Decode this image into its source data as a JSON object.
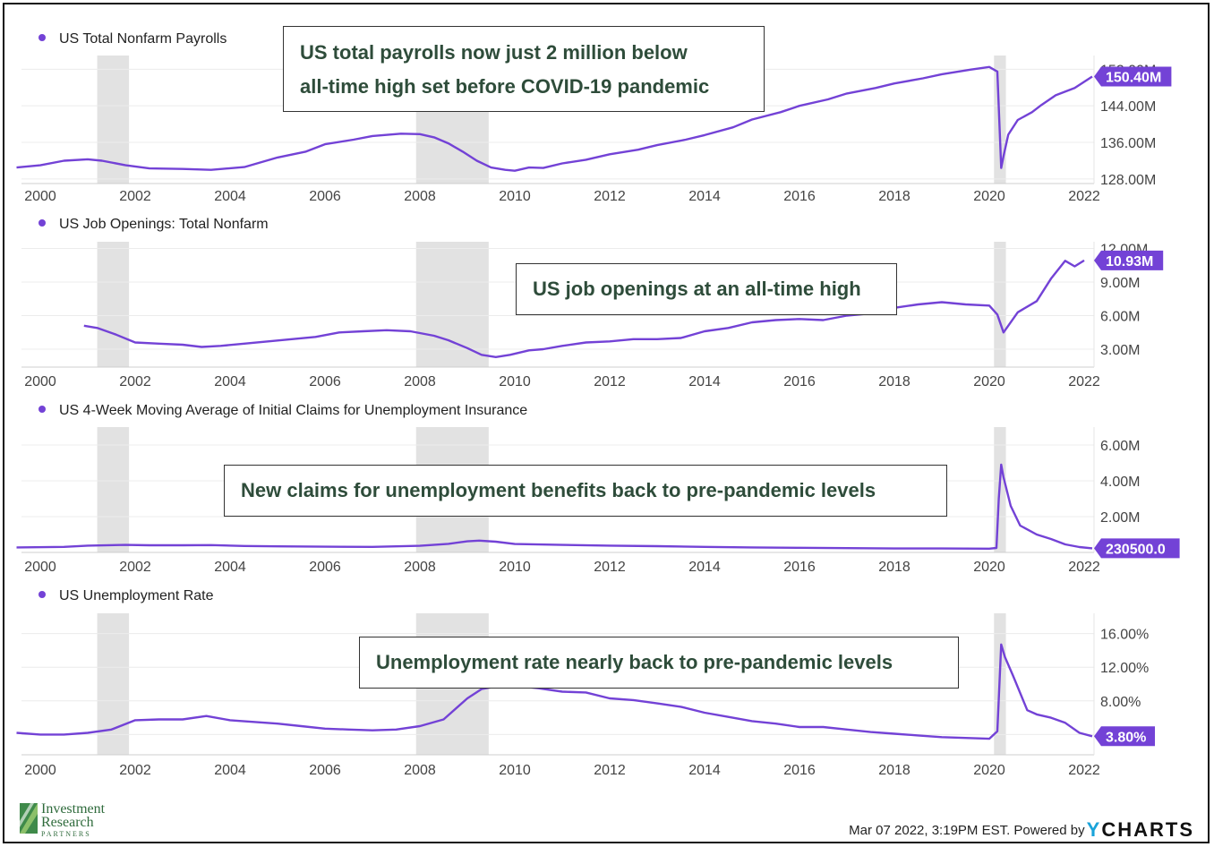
{
  "footer": {
    "timestamp_text": "Mar 07 2022, 3:19PM EST. Powered by",
    "brand_y": "Y",
    "brand_rest": "CHARTS"
  },
  "logo": {
    "line1": "Investment",
    "line2": "Research",
    "line3": "PARTNERS"
  },
  "colors": {
    "line": "#7342d6",
    "recession": "#e2e2e2",
    "text": "#2e4c3a",
    "badge": "#7342d6"
  },
  "callouts": [
    {
      "lines": [
        "US total payrolls now just 2 million below",
        "all-time high set before COVID-19 pandemic"
      ]
    },
    {
      "lines": [
        "US job openings at an all-time high"
      ]
    },
    {
      "lines": [
        "New claims for unemployment benefits back to pre-pandemic levels"
      ]
    },
    {
      "lines": [
        "Unemployment rate nearly back to pre-pandemic levels"
      ]
    }
  ],
  "chart_data": [
    {
      "type": "line",
      "title": "US Total Nonfarm Payrolls",
      "x_ticks": [
        "2000",
        "2002",
        "2004",
        "2006",
        "2008",
        "2010",
        "2012",
        "2014",
        "2016",
        "2018",
        "2020",
        "2022"
      ],
      "y_ticks": [
        "128.00M",
        "136.00M",
        "144.00M",
        "152.00M"
      ],
      "ylim": [
        127,
        155
      ],
      "last_value_label": "150.40M",
      "recessions": [
        [
          2001.2,
          2001.87
        ],
        [
          2007.92,
          2009.45
        ],
        [
          2020.1,
          2020.35
        ]
      ],
      "series": [
        {
          "x": [
            1999.5,
            2000,
            2000.5,
            2001,
            2001.3,
            2001.8,
            2002.3,
            2003,
            2003.6,
            2004.3,
            2005,
            2005.6,
            2006,
            2006.6,
            2007,
            2007.6,
            2008,
            2008.3,
            2008.6,
            2008.9,
            2009.2,
            2009.5,
            2009.8,
            2010,
            2010.3,
            2010.6,
            2011,
            2011.5,
            2012,
            2012.6,
            2013,
            2013.6,
            2014,
            2014.6,
            2015,
            2015.6,
            2016,
            2016.6,
            2017,
            2017.6,
            2018,
            2018.6,
            2019,
            2019.6,
            2020.0,
            2020.17,
            2020.25,
            2020.3,
            2020.4,
            2020.6,
            2020.9,
            2021.1,
            2021.4,
            2021.8,
            2022.17
          ],
          "y": [
            130.5,
            131.0,
            132.0,
            132.3,
            132.0,
            131.0,
            130.3,
            130.2,
            130.0,
            130.6,
            132.7,
            134.0,
            135.6,
            136.6,
            137.4,
            137.9,
            137.8,
            137.1,
            135.8,
            134.0,
            132.0,
            130.5,
            130.0,
            129.8,
            130.5,
            130.4,
            131.4,
            132.2,
            133.4,
            134.4,
            135.4,
            136.6,
            137.6,
            139.3,
            141.0,
            142.6,
            144.0,
            145.4,
            146.7,
            147.9,
            148.9,
            150.0,
            150.9,
            151.9,
            152.5,
            151.5,
            130.4,
            133.0,
            137.7,
            140.9,
            142.6,
            144.2,
            146.3,
            147.9,
            150.4
          ]
        }
      ]
    },
    {
      "type": "line",
      "title": "US Job Openings: Total Nonfarm",
      "x_ticks": [
        "2000",
        "2002",
        "2004",
        "2006",
        "2008",
        "2010",
        "2012",
        "2014",
        "2016",
        "2018",
        "2020",
        "2022"
      ],
      "y_ticks": [
        "3.00M",
        "6.00M",
        "9.00M",
        "12.00M"
      ],
      "ylim": [
        1.4,
        12.6
      ],
      "last_value_label": "10.93M",
      "recessions": [
        [
          2001.2,
          2001.87
        ],
        [
          2007.92,
          2009.45
        ],
        [
          2020.1,
          2020.35
        ]
      ],
      "series": [
        {
          "x": [
            2000.92,
            2001.2,
            2001.6,
            2002,
            2002.5,
            2003,
            2003.4,
            2003.8,
            2004.3,
            2004.8,
            2005.3,
            2005.8,
            2006.3,
            2006.8,
            2007.3,
            2007.8,
            2008.3,
            2008.6,
            2009.0,
            2009.3,
            2009.6,
            2009.9,
            2010.3,
            2010.6,
            2011,
            2011.5,
            2012,
            2012.5,
            2013,
            2013.5,
            2014,
            2014.5,
            2015,
            2015.5,
            2016,
            2016.5,
            2017,
            2017.5,
            2018,
            2018.5,
            2019,
            2019.5,
            2020.0,
            2020.17,
            2020.3,
            2020.6,
            2021,
            2021.3,
            2021.6,
            2021.8,
            2022.0
          ],
          "y": [
            5.1,
            4.9,
            4.3,
            3.6,
            3.5,
            3.4,
            3.2,
            3.3,
            3.5,
            3.7,
            3.9,
            4.1,
            4.5,
            4.6,
            4.7,
            4.6,
            4.2,
            3.8,
            3.1,
            2.5,
            2.3,
            2.5,
            2.9,
            3.0,
            3.3,
            3.6,
            3.7,
            3.9,
            3.9,
            4.0,
            4.6,
            4.9,
            5.4,
            5.6,
            5.7,
            5.6,
            6.0,
            6.2,
            6.7,
            7.0,
            7.2,
            7.0,
            6.9,
            6.1,
            4.5,
            6.3,
            7.3,
            9.3,
            10.9,
            10.4,
            10.93
          ]
        }
      ]
    },
    {
      "type": "line",
      "title": "US 4-Week Moving Average of Initial Claims for Unemployment Insurance",
      "x_ticks": [
        "2000",
        "2002",
        "2004",
        "2006",
        "2008",
        "2010",
        "2012",
        "2014",
        "2016",
        "2018",
        "2020",
        "2022"
      ],
      "y_ticks": [
        "2.00M",
        "4.00M",
        "6.00M"
      ],
      "ylim": [
        0,
        7.0
      ],
      "last_value_label": "230500.0",
      "recessions": [
        [
          2001.2,
          2001.87
        ],
        [
          2007.92,
          2009.45
        ],
        [
          2020.1,
          2020.35
        ]
      ],
      "series": [
        {
          "x": [
            1999.5,
            2000.5,
            2001,
            2001.8,
            2002.3,
            2003,
            2003.6,
            2004.3,
            2005,
            2006,
            2007,
            2008,
            2008.6,
            2009.0,
            2009.25,
            2009.6,
            2010,
            2011,
            2012,
            2013,
            2014,
            2015,
            2016,
            2017,
            2018,
            2019,
            2020.0,
            2020.15,
            2020.2,
            2020.25,
            2020.3,
            2020.45,
            2020.65,
            2021,
            2021.3,
            2021.6,
            2021.9,
            2022.17
          ],
          "y": [
            0.28,
            0.31,
            0.38,
            0.42,
            0.4,
            0.4,
            0.41,
            0.36,
            0.34,
            0.32,
            0.31,
            0.37,
            0.48,
            0.62,
            0.66,
            0.6,
            0.47,
            0.42,
            0.38,
            0.35,
            0.31,
            0.28,
            0.26,
            0.24,
            0.22,
            0.22,
            0.21,
            0.25,
            3.0,
            4.9,
            4.2,
            2.6,
            1.5,
            1.0,
            0.75,
            0.45,
            0.3,
            0.23
          ]
        }
      ]
    },
    {
      "type": "line",
      "title": "US Unemployment Rate",
      "x_ticks": [
        "2000",
        "2002",
        "2004",
        "2006",
        "2008",
        "2010",
        "2012",
        "2014",
        "2016",
        "2018",
        "2020",
        "2022"
      ],
      "y_ticks": [
        "4.00%",
        "8.00%",
        "12.00%",
        "16.00%"
      ],
      "ylim": [
        1.6,
        18.4
      ],
      "last_value_label": "3.80%",
      "recessions": [
        [
          2001.2,
          2001.87
        ],
        [
          2007.92,
          2009.45
        ],
        [
          2020.1,
          2020.35
        ]
      ],
      "series": [
        {
          "x": [
            1999.5,
            2000,
            2000.5,
            2001,
            2001.5,
            2002,
            2002.5,
            2003,
            2003.5,
            2004,
            2004.5,
            2005,
            2005.5,
            2006,
            2006.5,
            2007,
            2007.5,
            2008,
            2008.5,
            2009,
            2009.3,
            2009.8,
            2010,
            2010.5,
            2011,
            2011.5,
            2012,
            2012.5,
            2013,
            2013.5,
            2014,
            2014.5,
            2015,
            2015.5,
            2016,
            2016.5,
            2017,
            2017.5,
            2018,
            2018.5,
            2019,
            2019.5,
            2020.0,
            2020.17,
            2020.25,
            2020.33,
            2020.5,
            2020.8,
            2021,
            2021.3,
            2021.6,
            2021.9,
            2022.17
          ],
          "y": [
            4.2,
            4.0,
            4.0,
            4.2,
            4.6,
            5.7,
            5.8,
            5.8,
            6.2,
            5.7,
            5.5,
            5.3,
            5.0,
            4.7,
            4.6,
            4.5,
            4.6,
            5.0,
            5.8,
            8.3,
            9.4,
            9.9,
            9.8,
            9.5,
            9.1,
            9.0,
            8.3,
            8.1,
            7.7,
            7.3,
            6.6,
            6.1,
            5.6,
            5.3,
            4.9,
            4.9,
            4.6,
            4.3,
            4.1,
            3.9,
            3.7,
            3.6,
            3.5,
            4.4,
            14.7,
            13.2,
            11.0,
            6.9,
            6.4,
            6.0,
            5.4,
            4.2,
            3.8
          ]
        }
      ]
    }
  ]
}
